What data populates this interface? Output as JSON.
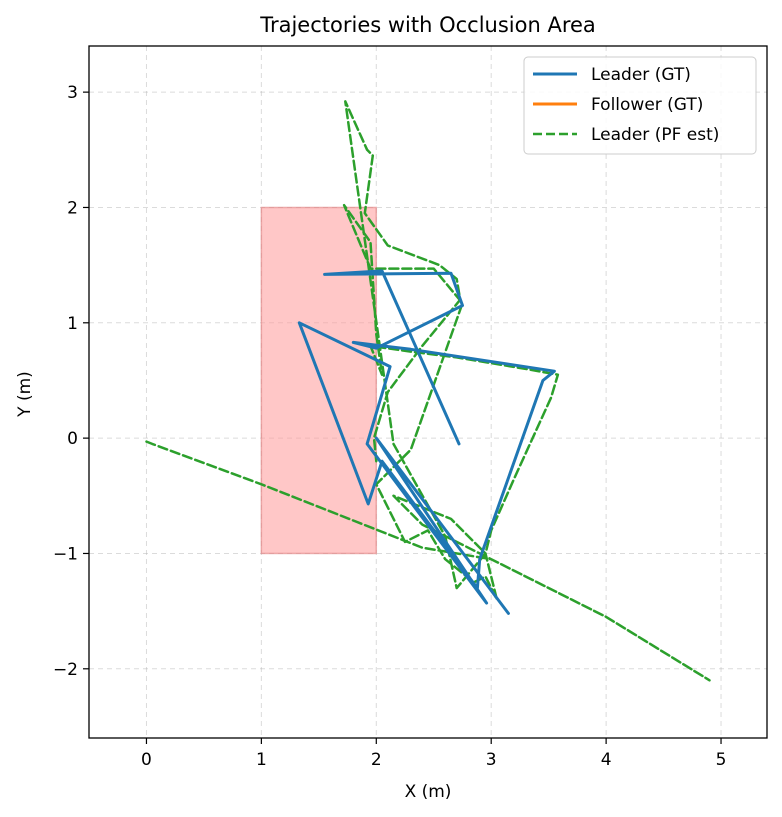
{
  "chart_data": {
    "type": "line",
    "title": "Trajectories with Occlusion Area",
    "xlabel": "X (m)",
    "ylabel": "Y (m)",
    "xlim": [
      -0.5,
      5.4
    ],
    "ylim": [
      -2.6,
      3.4
    ],
    "xticks": [
      0,
      1,
      2,
      3,
      4,
      5
    ],
    "yticks": [
      -2,
      -1,
      0,
      1,
      2,
      3
    ],
    "xtick_labels": [
      "0",
      "1",
      "2",
      "3",
      "4",
      "5"
    ],
    "ytick_labels": [
      "−2",
      "−1",
      "0",
      "1",
      "2",
      "3"
    ],
    "grid": true,
    "legend_position": "top-right",
    "occlusion_area": {
      "x": [
        1,
        2
      ],
      "y": [
        -1,
        2
      ],
      "color": "#ff9999"
    },
    "series": [
      {
        "name": "Leader (GT)",
        "color": "#1f77b4",
        "style": "solid",
        "x": [
          2.72,
          2.05,
          1.55,
          2.65,
          2.75,
          2.0,
          1.8,
          2.3,
          3.55,
          3.45,
          2.9,
          2.88,
          2.05,
          1.93,
          1.33,
          2.12,
          1.92,
          2.96,
          2.0,
          3.15
        ],
        "y": [
          -0.05,
          1.45,
          1.42,
          1.43,
          1.15,
          0.78,
          0.83,
          0.77,
          0.58,
          0.5,
          -1.05,
          -1.3,
          -0.2,
          -0.57,
          1.0,
          0.62,
          -0.05,
          -1.43,
          0.0,
          -1.52
        ]
      },
      {
        "name": "Follower (GT)",
        "color": "#ff7f0e",
        "style": "solid",
        "x": [],
        "y": []
      },
      {
        "name": "Leader (PF est)",
        "color": "#2ca02c",
        "style": "dashed",
        "x": [
          0.0,
          0.05,
          1.0,
          2.4,
          3.0,
          4.0,
          4.9,
          4.0,
          3.0,
          2.4,
          2.15,
          2.65,
          2.95,
          3.05,
          2.95,
          2.85,
          2.6,
          2.45,
          2.25,
          2.0,
          2.3,
          2.75,
          2.5,
          2.2,
          1.95,
          1.72,
          1.95,
          2.0,
          2.05,
          1.95,
          2.3,
          2.7,
          3.3,
          3.58,
          3.52,
          3.2,
          3.0,
          2.95,
          2.7,
          2.6,
          2.15,
          1.73,
          1.92,
          1.97,
          1.9,
          2.1,
          2.55,
          2.7,
          2.73,
          2.4,
          2.1,
          1.98,
          2.0
        ],
        "y": [
          -0.03,
          -0.05,
          -0.4,
          -0.95,
          -1.05,
          -1.55,
          -2.1,
          -1.55,
          -1.05,
          -0.75,
          -0.5,
          -0.7,
          -1.0,
          -1.4,
          -1.2,
          -1.25,
          -1.05,
          -0.8,
          -0.9,
          -0.4,
          -0.1,
          1.17,
          1.47,
          1.47,
          1.47,
          2.02,
          1.7,
          0.9,
          0.55,
          0.8,
          0.75,
          0.7,
          0.6,
          0.55,
          0.35,
          -0.35,
          -0.8,
          -1.0,
          -1.3,
          -0.85,
          -0.05,
          2.92,
          2.5,
          2.45,
          1.95,
          1.67,
          1.5,
          1.38,
          1.2,
          0.8,
          0.4,
          0.0,
          -0.2
        ]
      }
    ]
  }
}
